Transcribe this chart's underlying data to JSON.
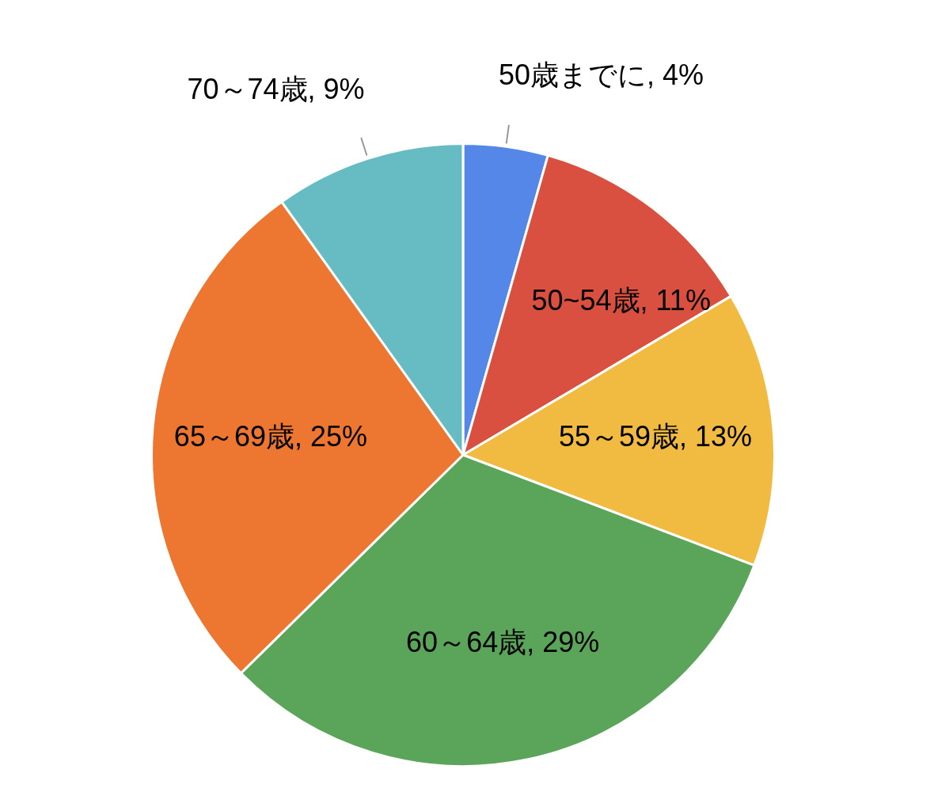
{
  "chart_data": {
    "type": "pie",
    "categories": [
      "50歳までに",
      "50~54歳",
      "55～59歳",
      "60～64歳",
      "65～69歳",
      "70～74歳"
    ],
    "values": [
      4,
      11,
      13,
      29,
      25,
      9
    ],
    "value_labels": [
      "4%",
      "11%",
      "13%",
      "29%",
      "25%",
      "9%"
    ],
    "colors": [
      "#5587e8",
      "#d95040",
      "#f1bb42",
      "#5ba55b",
      "#ed7631",
      "#67bcc4"
    ],
    "legend": false
  }
}
